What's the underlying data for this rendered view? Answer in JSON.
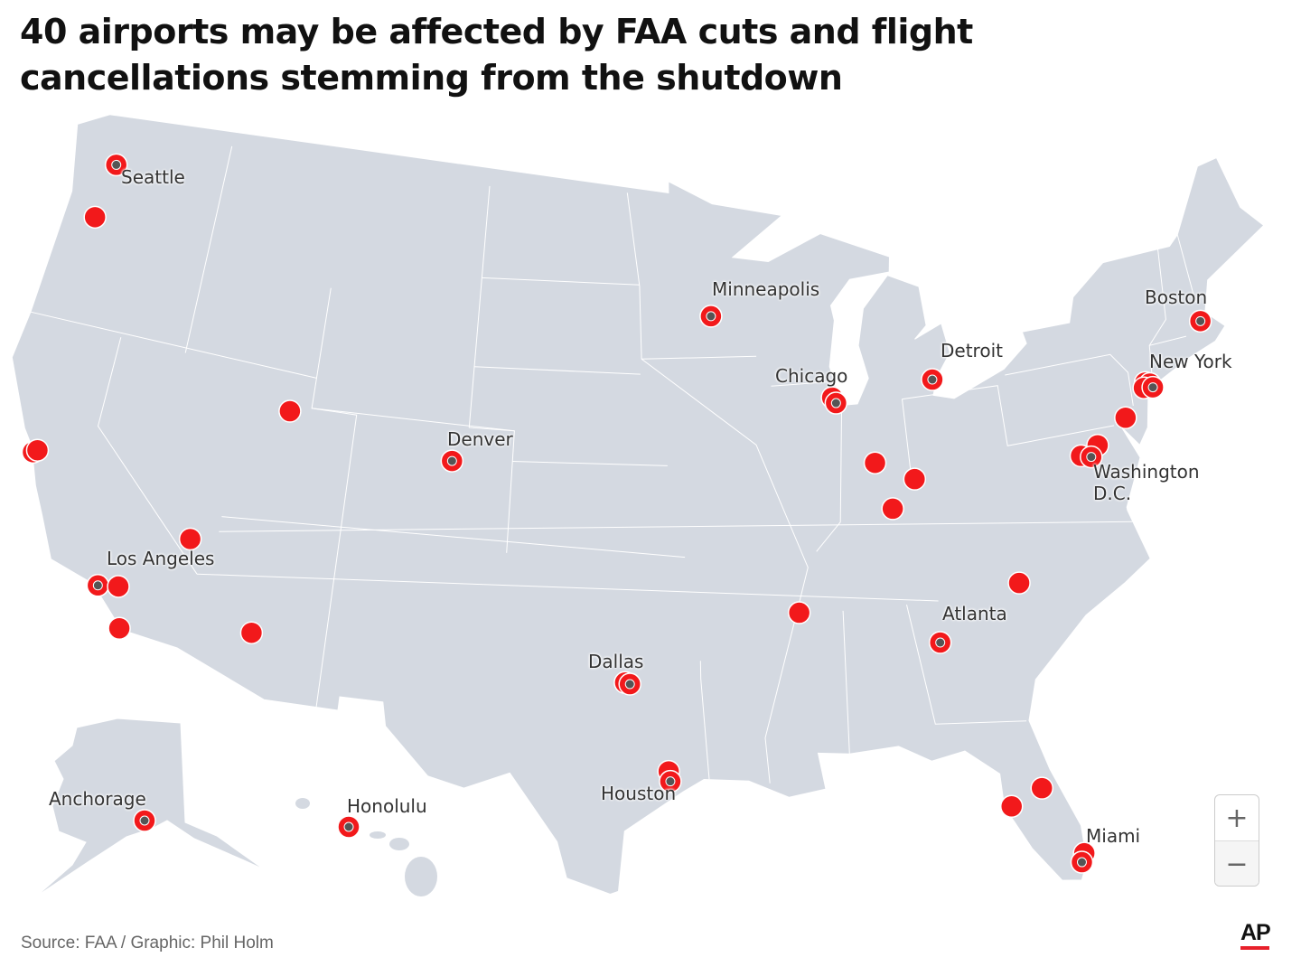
{
  "title": "40 airports may be affected by FAA cuts and flight cancellations stemming from the shutdown",
  "source": "Source: FAA / Graphic: Phil Holm",
  "logo": "AP",
  "zoom_controls": {
    "zoom_in": "+",
    "zoom_out": "−"
  },
  "colors": {
    "land": "#d4d9e1",
    "border": "#ffffff",
    "airport_dot": "#f2191b",
    "labeled_center": "#555555",
    "logo_bar": "#e8202a"
  },
  "map": {
    "projection": "Albers USA",
    "region": "United States (with Alaska and Hawaii insets)"
  },
  "city_labels": [
    "Seattle",
    "Minneapolis",
    "Boston",
    "Detroit",
    "New York",
    "Chicago",
    "Denver",
    "Washington\nD.C.",
    "Los Angeles",
    "Atlanta",
    "Dallas",
    "Houston",
    "Anchorage",
    "Honolulu",
    "Miami"
  ],
  "airports": [
    {
      "code": "SEA",
      "lat": 47.45,
      "lon": -122.31,
      "labeled": true
    },
    {
      "code": "PDX",
      "lat": 45.59,
      "lon": -122.6
    },
    {
      "code": "SFO",
      "lat": 37.62,
      "lon": -122.38
    },
    {
      "code": "OAK",
      "lat": 37.72,
      "lon": -122.22
    },
    {
      "code": "LAX",
      "lat": 33.94,
      "lon": -118.41,
      "labeled": true
    },
    {
      "code": "ONT",
      "lat": 34.06,
      "lon": -117.6
    },
    {
      "code": "SAN",
      "lat": 32.73,
      "lon": -117.19
    },
    {
      "code": "LAS",
      "lat": 36.08,
      "lon": -115.15
    },
    {
      "code": "PHX",
      "lat": 33.43,
      "lon": -112.01
    },
    {
      "code": "SLC",
      "lat": 40.79,
      "lon": -111.98
    },
    {
      "code": "DEN",
      "lat": 39.86,
      "lon": -104.67,
      "labeled": true
    },
    {
      "code": "DFW",
      "lat": 32.9,
      "lon": -97.04
    },
    {
      "code": "DAL",
      "lat": 32.85,
      "lon": -96.85,
      "labeled": true
    },
    {
      "code": "IAH",
      "lat": 29.98,
      "lon": -95.34
    },
    {
      "code": "HOU",
      "lat": 29.65,
      "lon": -95.28,
      "labeled": true
    },
    {
      "code": "MSP",
      "lat": 44.88,
      "lon": -93.22,
      "labeled": true
    },
    {
      "code": "ORD",
      "lat": 41.98,
      "lon": -87.9
    },
    {
      "code": "MDW",
      "lat": 41.79,
      "lon": -87.75,
      "labeled": true
    },
    {
      "code": "IND",
      "lat": 39.72,
      "lon": -86.29
    },
    {
      "code": "SDF",
      "lat": 38.17,
      "lon": -85.74
    },
    {
      "code": "CVG",
      "lat": 39.05,
      "lon": -84.67
    },
    {
      "code": "MEM",
      "lat": 35.04,
      "lon": -89.98
    },
    {
      "code": "ATL",
      "lat": 33.64,
      "lon": -84.43,
      "labeled": true
    },
    {
      "code": "CLT",
      "lat": 35.21,
      "lon": -80.94
    },
    {
      "code": "DTW",
      "lat": 42.21,
      "lon": -83.35,
      "labeled": true
    },
    {
      "code": "TPA",
      "lat": 27.98,
      "lon": -82.53
    },
    {
      "code": "MCO",
      "lat": 28.43,
      "lon": -81.31
    },
    {
      "code": "FLL",
      "lat": 26.07,
      "lon": -80.15
    },
    {
      "code": "MIA",
      "lat": 25.79,
      "lon": -80.29,
      "labeled": true
    },
    {
      "code": "BOS",
      "lat": 42.36,
      "lon": -71.01,
      "labeled": true
    },
    {
      "code": "TEB",
      "lat": 40.85,
      "lon": -74.06
    },
    {
      "code": "LGA",
      "lat": 40.78,
      "lon": -73.87
    },
    {
      "code": "EWR",
      "lat": 40.69,
      "lon": -74.17
    },
    {
      "code": "JFK",
      "lat": 40.64,
      "lon": -73.78,
      "labeled": true
    },
    {
      "code": "PHL",
      "lat": 39.87,
      "lon": -75.24
    },
    {
      "code": "BWI",
      "lat": 39.18,
      "lon": -76.67
    },
    {
      "code": "IAD",
      "lat": 38.95,
      "lon": -77.46
    },
    {
      "code": "DCA",
      "lat": 38.85,
      "lon": -77.04,
      "labeled": true
    },
    {
      "code": "ANC",
      "lat": 61.17,
      "lon": -149.99,
      "labeled": true,
      "inset": "alaska"
    },
    {
      "code": "HNL",
      "lat": 21.32,
      "lon": -157.92,
      "labeled": true,
      "inset": "hawaii"
    }
  ]
}
